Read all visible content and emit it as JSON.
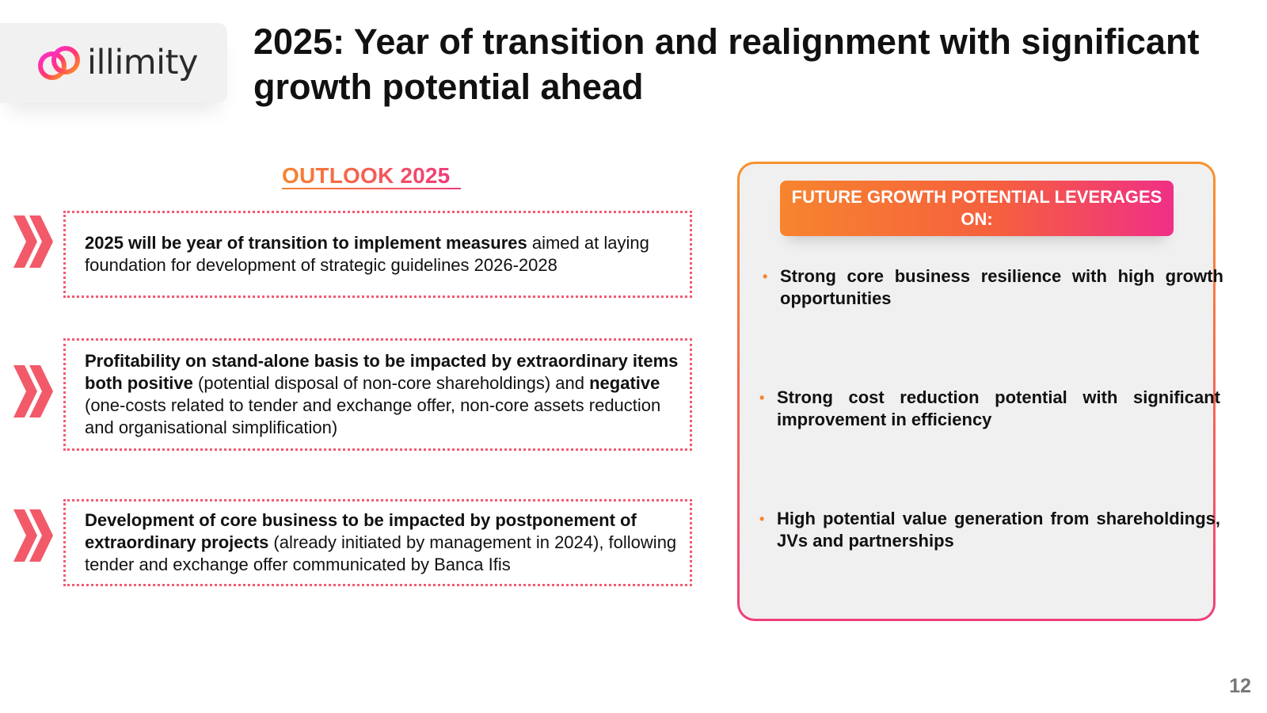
{
  "logo": {
    "wordmark": "illimity",
    "icon": "infinity-logo-icon"
  },
  "title": "2025: Year of transition and realignment with significant growth potential ahead",
  "outlook": {
    "heading": "OUTLOOK 2025",
    "items": [
      {
        "bold1": "2025 will be year of transition to implement measures",
        "text1": " aimed at laying foundation for development of strategic guidelines 2026-2028",
        "bold2": "",
        "text2": "",
        "icon": "double-chevron-right-icon"
      },
      {
        "bold1": "Profitability on stand-alone basis to be impacted by extraordinary items both positive",
        "text1": " (potential disposal of non-core shareholdings) and ",
        "bold2": "negative",
        "text2": " (one-costs related to tender and exchange offer, non-core assets reduction and organisational simplification)",
        "icon": "double-chevron-right-icon"
      },
      {
        "bold1": "Development of core business to be impacted by postponement of extraordinary projects",
        "text1": " (already initiated by management in 2024), following tender and exchange offer communicated by Banca Ifis",
        "bold2": "",
        "text2": "",
        "icon": "double-chevron-right-icon"
      }
    ]
  },
  "growth": {
    "header": "FUTURE GROWTH POTENTIAL LEVERAGES ON:",
    "bullet_glyph": "•",
    "items": [
      "Strong core business resilience with high growth opportunities",
      "Strong cost reduction potential with significant improvement in efficiency",
      "High potential value generation from shareholdings, JVs and partnerships"
    ]
  },
  "page_number": "12",
  "colors": {
    "accent_orange": "#f7842e",
    "accent_pink": "#f03a7a",
    "chevron": "#f25a6a",
    "dotted_border": "#f25a72",
    "panel_bg": "#f0f0f0"
  }
}
